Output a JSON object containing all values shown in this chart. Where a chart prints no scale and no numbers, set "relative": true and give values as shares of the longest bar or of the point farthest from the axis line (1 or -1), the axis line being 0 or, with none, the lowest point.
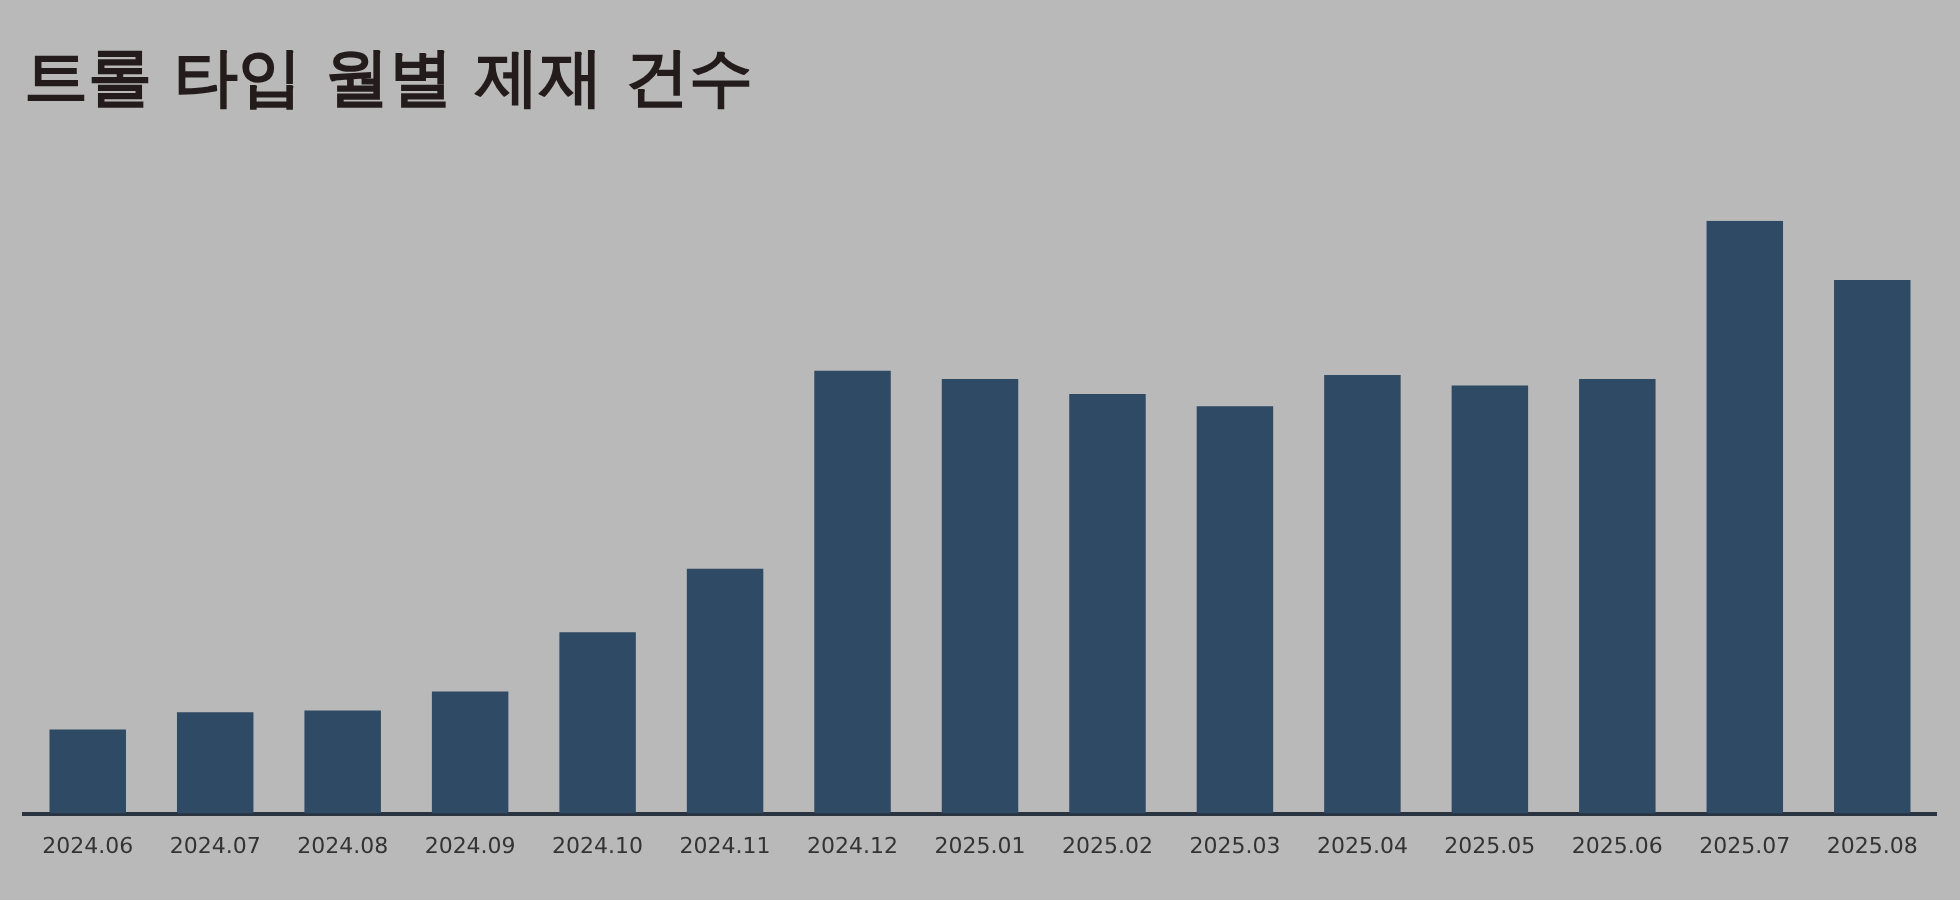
{
  "chart_data": {
    "type": "bar",
    "title": "트롤 타입 월별 제재 건수",
    "relative": true,
    "grid": false,
    "legend": false,
    "categories": [
      "2024.06",
      "2024.07",
      "2024.08",
      "2024.09",
      "2024.10",
      "2024.11",
      "2024.12",
      "2025.01",
      "2025.02",
      "2025.03",
      "2025.04",
      "2025.05",
      "2025.06",
      "2025.07",
      "2025.08"
    ],
    "values": [
      0.142,
      0.171,
      0.174,
      0.206,
      0.306,
      0.413,
      0.747,
      0.733,
      0.708,
      0.687,
      0.74,
      0.722,
      0.733,
      1,
      0.9
    ],
    "color": "#2f4a64"
  }
}
